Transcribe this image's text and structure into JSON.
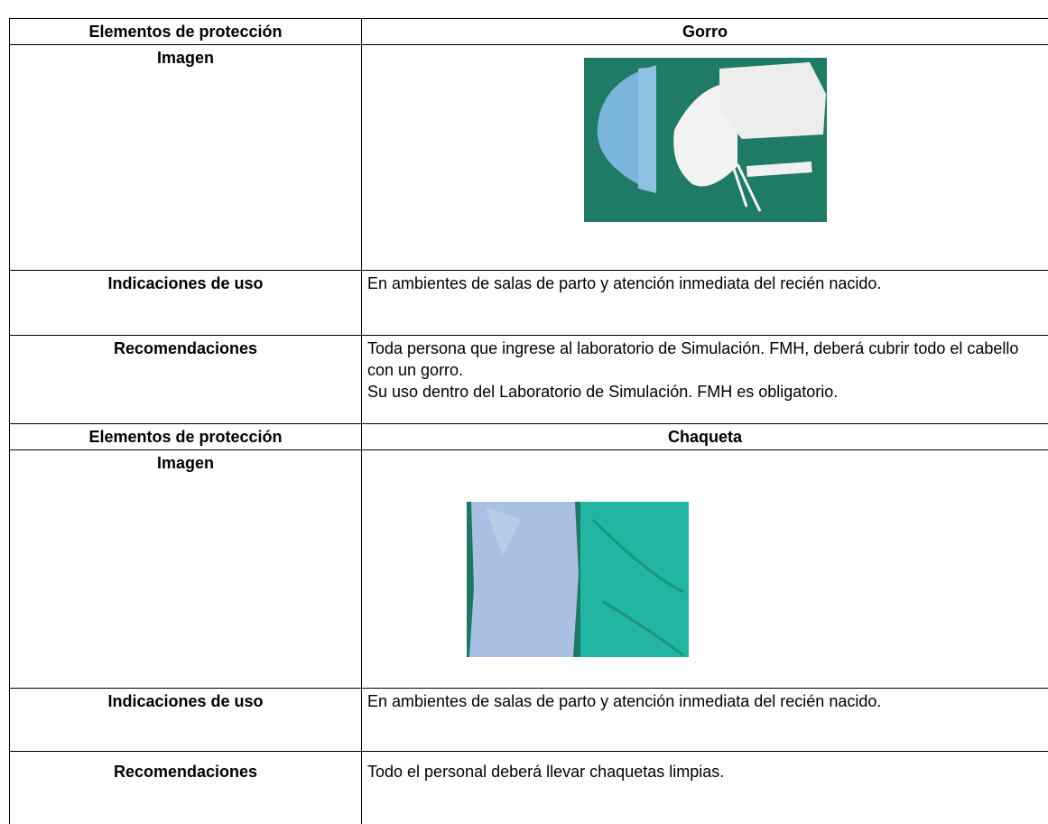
{
  "table": {
    "blocks": [
      {
        "label": "Elementos de protección",
        "item": "Gorro",
        "image_label": "Imagen",
        "indications_label": "Indicaciones de uso",
        "indications": "En ambientes de salas de parto y atención inmediata del recién nacido.",
        "recommendations_label": "Recomendaciones",
        "recommendations": [
          "Toda persona que ingrese al laboratorio de Simulación. FMH, deberá cubrir todo el cabello con un gorro.",
          "Su uso dentro del Laboratorio de Simulación. FMH es obligatorio."
        ]
      },
      {
        "label": "Elementos de protección",
        "item": "Chaqueta",
        "image_label": "Imagen",
        "indications_label": "Indicaciones de uso",
        "indications": "En ambientes de salas de parto y atención inmediata del recién nacido.",
        "recommendations_label": "Recomendaciones",
        "recommendations": [
          "Todo el personal deberá llevar chaquetas limpias."
        ]
      }
    ]
  }
}
